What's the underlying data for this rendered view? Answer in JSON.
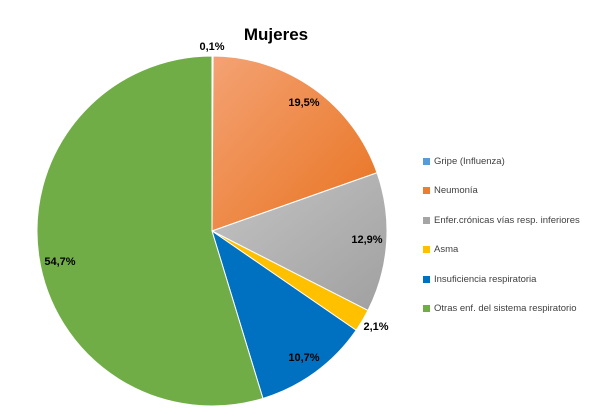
{
  "chart_data": {
    "type": "pie",
    "title": "Mujeres",
    "start_angle_deg": 0,
    "slices": [
      {
        "name": "Gripe (Influenza)",
        "value": 0.1,
        "label": "0,1%",
        "color": "#5B9BD5"
      },
      {
        "name": "Neumonía",
        "value": 19.5,
        "label": "19,5%",
        "color": "#ED7D31"
      },
      {
        "name": "Enfer.crónicas vías resp. inferiores",
        "value": 12.9,
        "label": "12,9%",
        "color": "#A5A5A5"
      },
      {
        "name": "Asma",
        "value": 2.1,
        "label": "2,1%",
        "color": "#FFC000"
      },
      {
        "name": "Insuficiencia  respiratoria",
        "value": 10.7,
        "label": "10,7%",
        "color": "#0070C0"
      },
      {
        "name": "Otras enf. del sistema respiratorio",
        "value": 54.7,
        "label": "54,7%",
        "color": "#70AD47"
      }
    ],
    "legend_position": "right"
  }
}
